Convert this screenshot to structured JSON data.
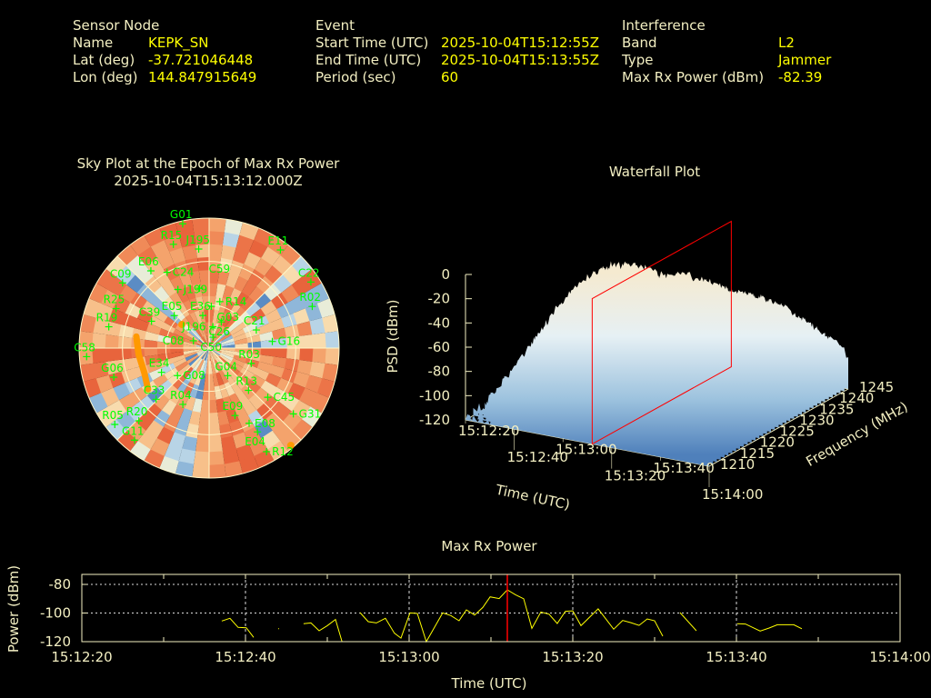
{
  "header": {
    "sensor": {
      "title": "Sensor Node",
      "name_label": "Name",
      "name": "KEPK_SN",
      "lat_label": "Lat (deg)",
      "lat": "-37.721046448",
      "lon_label": "Lon (deg)",
      "lon": "144.847915649"
    },
    "event": {
      "title": "Event",
      "start_label": "Start Time (UTC)",
      "start": "2025-10-04T15:12:55Z",
      "end_label": "End Time (UTC)",
      "end": "2025-10-04T15:13:55Z",
      "period_label": "Period (sec)",
      "period": "60"
    },
    "interference": {
      "title": "Interference",
      "band_label": "Band",
      "band": "L2",
      "type_label": "Type",
      "type": "Jammer",
      "power_label": "Max Rx Power (dBm)",
      "power": "-82.39"
    }
  },
  "colors": {
    "label": "#f3efc2",
    "value": "#ffff00",
    "sat": "#00ff00",
    "track": "#ff9900",
    "marker": "#ff0000",
    "line": "#ffff00"
  },
  "chart_data": [
    {
      "type": "heatmap",
      "title": "Sky Plot at the Epoch of Max Rx Power",
      "subtitle": "2025-10-04T15:13:12.000Z",
      "elevation_rings": [
        0,
        30,
        60
      ],
      "satellites": [
        {
          "id": "G01",
          "az": 348,
          "el": 2
        },
        {
          "id": "R15",
          "az": 341,
          "el": 14
        },
        {
          "id": "J195",
          "az": 354,
          "el": 21
        },
        {
          "id": "E11",
          "az": 36,
          "el": 6
        },
        {
          "id": "E06",
          "az": 323,
          "el": 23
        },
        {
          "id": "C24",
          "az": 331,
          "el": 30
        },
        {
          "id": "C09",
          "az": 307,
          "el": 15
        },
        {
          "id": "C22",
          "az": 57,
          "el": 6
        },
        {
          "id": "R02",
          "az": 68,
          "el": 13
        },
        {
          "id": "J199",
          "az": 332,
          "el": 44
        },
        {
          "id": "C59",
          "az": 351,
          "el": 48
        },
        {
          "id": "E05",
          "az": 313,
          "el": 57
        },
        {
          "id": "E36",
          "az": 349,
          "el": 67
        },
        {
          "id": "R14",
          "az": 13,
          "el": 57
        },
        {
          "id": "G03",
          "az": 3,
          "el": 61
        },
        {
          "id": "C26",
          "az": 25,
          "el": 70
        },
        {
          "id": "J196",
          "az": 10,
          "el": 75
        },
        {
          "id": "C50",
          "az": 20,
          "el": 82
        },
        {
          "id": "C21",
          "az": 69,
          "el": 55
        },
        {
          "id": "G16",
          "az": 84,
          "el": 46
        },
        {
          "id": "C58",
          "az": 266,
          "el": 5
        },
        {
          "id": "R19",
          "az": 282,
          "el": 19
        },
        {
          "id": "R25",
          "az": 293,
          "el": 20
        },
        {
          "id": "C39",
          "az": 295,
          "el": 46
        },
        {
          "id": "C08",
          "az": 295,
          "el": 78
        },
        {
          "id": "G06",
          "az": 253,
          "el": 21
        },
        {
          "id": "E34",
          "az": 243,
          "el": 53
        },
        {
          "id": "G08",
          "az": 229,
          "el": 61
        },
        {
          "id": "G04",
          "az": 146,
          "el": 67
        },
        {
          "id": "R03",
          "az": 110,
          "el": 59
        },
        {
          "id": "R13",
          "az": 137,
          "el": 50
        },
        {
          "id": "C45",
          "az": 130,
          "el": 37
        },
        {
          "id": "G31",
          "az": 128,
          "el": 16
        },
        {
          "id": "R04",
          "az": 205,
          "el": 47
        },
        {
          "id": "E09",
          "az": 159,
          "el": 40
        },
        {
          "id": "E08",
          "az": 152,
          "el": 31
        },
        {
          "id": "E04",
          "az": 150,
          "el": 23
        },
        {
          "id": "R12",
          "az": 151,
          "el": 8
        },
        {
          "id": "C33",
          "az": 226,
          "el": 39
        },
        {
          "id": "R05",
          "az": 231,
          "el": 6
        },
        {
          "id": "R20",
          "az": 224,
          "el": 20
        },
        {
          "id": "G11",
          "az": 219,
          "el": 8
        }
      ],
      "interference_track": [
        {
          "az": 279,
          "el": 39
        },
        {
          "az": 265,
          "el": 41
        },
        {
          "az": 249,
          "el": 42
        },
        {
          "az": 236,
          "el": 39
        }
      ],
      "interference_points": [
        {
          "az": 311,
          "el": 65
        },
        {
          "az": 140,
          "el": 2
        }
      ]
    },
    {
      "type": "surface",
      "title": "Waterfall Plot",
      "xlabel": "Time (UTC)",
      "ylabel": "Frequency (MHz)",
      "zlabel": "PSD (dBm)",
      "x_ticks": [
        "15:12:20",
        "15:12:40",
        "15:13:00",
        "15:13:20",
        "15:13:40",
        "15:14:00"
      ],
      "x_range_sec": [
        0,
        100
      ],
      "y_ticks": [
        "1210",
        "1215",
        "1220",
        "1225",
        "1230",
        "1235",
        "1240",
        "1245"
      ],
      "y_range": [
        1210,
        1245
      ],
      "z_ticks": [
        "0",
        "-20",
        "-40",
        "-60",
        "-80",
        "-100",
        "-120"
      ],
      "z_range": [
        -120,
        0
      ],
      "marker_time_sec": 52,
      "grid_time_sec": [
        0,
        10,
        20,
        30,
        40,
        50,
        60,
        70,
        80,
        90,
        100
      ],
      "grid_freq": [
        1210,
        1215,
        1220,
        1225,
        1230,
        1235,
        1240,
        1245
      ],
      "psd_grid": [
        [
          -120,
          -118,
          -100,
          -98,
          -105,
          -95,
          -100,
          -108,
          -102,
          -95,
          -98
        ],
        [
          -115,
          -100,
          -85,
          -82,
          -88,
          -80,
          -85,
          -90,
          -86,
          -82,
          -85
        ],
        [
          -105,
          -80,
          -58,
          -55,
          -60,
          -52,
          -58,
          -62,
          -58,
          -55,
          -60
        ],
        [
          -95,
          -60,
          -38,
          -35,
          -40,
          -33,
          -38,
          -42,
          -40,
          -38,
          -45
        ],
        [
          -90,
          -50,
          -28,
          -26,
          -30,
          -25,
          -28,
          -32,
          -30,
          -30,
          -40
        ],
        [
          -90,
          -50,
          -30,
          -28,
          -32,
          -28,
          -30,
          -34,
          -35,
          -40,
          -55
        ],
        [
          -100,
          -65,
          -48,
          -45,
          -50,
          -45,
          -48,
          -52,
          -55,
          -60,
          -70
        ],
        [
          -110,
          -85,
          -72,
          -70,
          -75,
          -70,
          -72,
          -75,
          -80,
          -85,
          -90
        ]
      ]
    },
    {
      "type": "line",
      "title": "Max Rx Power",
      "xlabel": "Time (UTC)",
      "ylabel": "Power (dBm)",
      "x_ticks": [
        "15:12:20",
        "15:12:40",
        "15:13:00",
        "15:13:20",
        "15:13:40",
        "15:14:00"
      ],
      "x_range_sec": [
        0,
        100
      ],
      "y_ticks": [
        -80,
        -100,
        -120
      ],
      "ylim": [
        -120,
        -73
      ],
      "grid": true,
      "marker_time_sec": 52,
      "segments": [
        [
          [
            17.1,
            -105.6
          ],
          [
            18.1,
            -103.7
          ],
          [
            19.1,
            -110
          ],
          [
            20.1,
            -110.3
          ],
          [
            21,
            -117
          ]
        ],
        [
          [
            24,
            -111
          ],
          [
            24.1,
            -111
          ]
        ],
        [
          [
            27.1,
            -107.5
          ],
          [
            28,
            -106.9
          ],
          [
            29,
            -112.4
          ],
          [
            30,
            -108.8
          ],
          [
            31,
            -104.5
          ],
          [
            31.8,
            -120
          ]
        ],
        [
          [
            34,
            -99.7
          ],
          [
            35,
            -106
          ],
          [
            36,
            -106.9
          ],
          [
            37.1,
            -103.7
          ],
          [
            38.2,
            -114.1
          ],
          [
            39,
            -117.5
          ],
          [
            40.1,
            -99.9
          ],
          [
            41,
            -100.3
          ],
          [
            42.1,
            -120
          ],
          [
            44.1,
            -99.9
          ],
          [
            45.1,
            -101.8
          ],
          [
            46.1,
            -105.4
          ],
          [
            47,
            -97.8
          ],
          [
            48,
            -101.4
          ],
          [
            49,
            -96.1
          ],
          [
            49.9,
            -88.7
          ],
          [
            51,
            -89.9
          ],
          [
            52,
            -83.8
          ],
          [
            53,
            -87.2
          ],
          [
            54,
            -90
          ],
          [
            55,
            -110.7
          ],
          [
            56.1,
            -99.3
          ],
          [
            57.1,
            -100.8
          ],
          [
            58.1,
            -107.3
          ],
          [
            59.1,
            -98.8
          ],
          [
            60,
            -98.5
          ],
          [
            61,
            -108.8
          ],
          [
            63.1,
            -97.1
          ],
          [
            65,
            -111.3
          ],
          [
            66.1,
            -105.2
          ],
          [
            67.1,
            -106.7
          ],
          [
            68.1,
            -108.6
          ],
          [
            69.1,
            -104.1
          ],
          [
            70,
            -105.4
          ],
          [
            71,
            -116.2
          ]
        ],
        [
          [
            73.1,
            -99.7
          ],
          [
            75.1,
            -112.4
          ]
        ],
        [
          [
            80.1,
            -107.5
          ],
          [
            81.1,
            -107.7
          ],
          [
            82.9,
            -112.6
          ],
          [
            84,
            -110.5
          ],
          [
            85,
            -108.2
          ],
          [
            87,
            -108.2
          ],
          [
            88,
            -111
          ]
        ]
      ]
    }
  ]
}
